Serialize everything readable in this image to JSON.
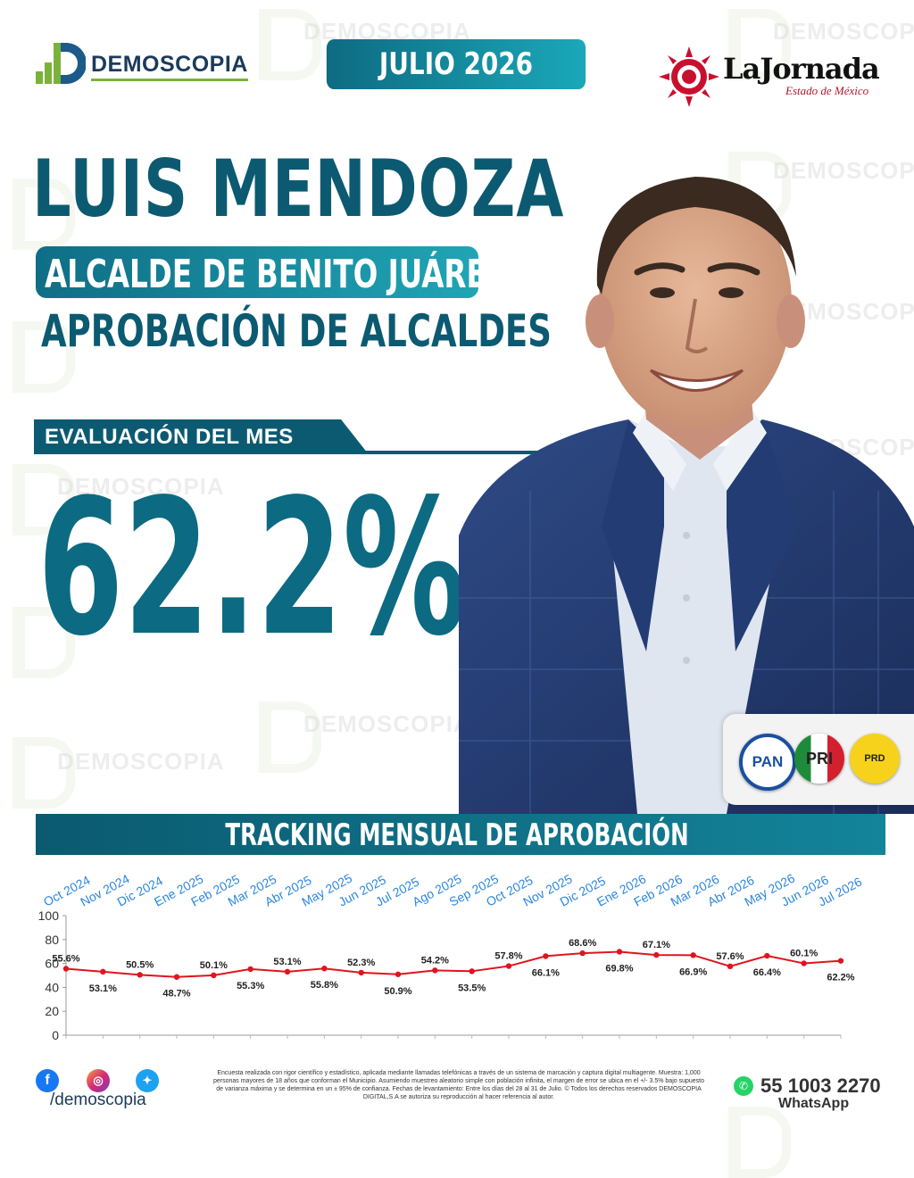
{
  "header": {
    "brand": "DEMOSCOPIA",
    "date": "JULIO 2026",
    "partner_name": "LaJornada",
    "partner_sub": "Estado de México"
  },
  "watermark": "DEMOSCOPIA",
  "titles": {
    "name": "LUIS MENDOZA",
    "role": "ALCALDE DE BENITO JUÁREZ",
    "subtitle": "APROBACIÓN DE ALCALDES"
  },
  "evaluation": {
    "label": "EVALUACIÓN DEL MES",
    "value": "62.2%"
  },
  "parties": [
    "PAN",
    "PRI",
    "PRD"
  ],
  "colors": {
    "primary": "#0c5a72",
    "accent": "#1aa8b8",
    "line": "#e0141e",
    "month_label": "#2a86e0"
  },
  "chart_data": {
    "type": "line",
    "title": "TRACKING MENSUAL DE APROBACIÓN",
    "categories": [
      "Oct 2024",
      "Nov 2024",
      "Dic 2024",
      "Ene 2025",
      "Feb 2025",
      "Mar 2025",
      "Abr 2025",
      "May 2025",
      "Jun 2025",
      "Jul 2025",
      "Ago 2025",
      "Sep 2025",
      "Oct 2025",
      "Nov 2025",
      "Dic 2025",
      "Ene 2026",
      "Feb 2026",
      "Mar 2026",
      "Abr 2026",
      "May 2026",
      "Jun 2026",
      "Jul 2026"
    ],
    "values": [
      55.6,
      53.1,
      50.5,
      48.7,
      50.1,
      55.3,
      53.1,
      55.8,
      52.3,
      50.9,
      54.2,
      53.5,
      57.8,
      66.1,
      68.6,
      69.8,
      67.1,
      66.9,
      57.6,
      66.4,
      60.1,
      62.2
    ],
    "labels": [
      "55.6%",
      "53.1%",
      "50.5%",
      "48.7%",
      "50.1%",
      "55.3%",
      "53.1%",
      "55.8%",
      "52.3%",
      "50.9%",
      "54.2%",
      "53.5%",
      "57.8%",
      "66.1%",
      "68.6%",
      "69.8%",
      "67.1%",
      "66.9%",
      "57.6%",
      "66.4%",
      "60.1%",
      "62.2%"
    ],
    "label_positions": [
      "above",
      "below",
      "above",
      "below",
      "above",
      "below",
      "above",
      "below",
      "above",
      "below",
      "above",
      "below",
      "above",
      "below",
      "above",
      "below",
      "above",
      "below",
      "above",
      "below",
      "above",
      "below"
    ],
    "ylim": [
      0,
      100
    ],
    "yticks": [
      "0",
      "20",
      "40",
      "60",
      "80",
      "100"
    ],
    "grid": false,
    "legend": "none"
  },
  "footer": {
    "social_handle": "/demoscopia",
    "disclaimer": "Encuesta realizada con rigor científico y estadístico, aplicada mediante llamadas telefónicas a través de un sistema de marcación y captura digital multiagente. Muestra: 1,000 personas mayores de 18 años que conforman el Municipio. Asumiendo muestreo aleatorio simple con población infinita, el margen de error se ubica en el +/- 3.5% bajo supuesto de varianza máxima y se determina en un ± 95% de confianza. Fechas de levantamiento: Entre los días del 28 al 31 de Julio. © Todos los derechos reservados DEMOSCOPIA DIGITAL,S.A se autoriza su reproducción al hacer referencia al autor.",
    "phone": "55 1003 2270",
    "phone_label": "WhatsApp"
  }
}
